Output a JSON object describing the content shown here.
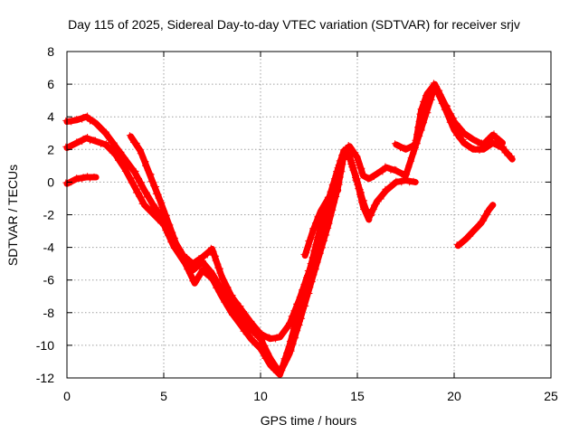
{
  "chart_data": {
    "type": "scatter",
    "title": "Day 115 of 2025, Sidereal Day-to-day VTEC variation (SDTVAR) for receiver srjv",
    "xlabel": "GPS time / hours",
    "ylabel": "SDTVAR / TECUs",
    "xlim": [
      0,
      25
    ],
    "ylim": [
      -12,
      8
    ],
    "xticks": [
      "0",
      "5",
      "10",
      "15",
      "20",
      "25"
    ],
    "yticks": [
      "8",
      "6",
      "4",
      "2",
      "0",
      "-2",
      "-4",
      "-6",
      "-8",
      "-10",
      "-12"
    ],
    "grid": true,
    "marker": "plus",
    "color": "#ff0000",
    "series": [
      {
        "x": [
          0.0,
          0.5,
          1.0,
          1.5,
          2.0,
          2.5,
          3.0,
          3.5,
          4.0,
          4.5,
          5.0,
          5.5,
          6.0,
          6.5,
          7.0,
          7.5,
          8.0,
          8.5,
          9.0,
          9.5,
          10.0,
          10.5,
          11.0,
          11.5,
          12.0,
          12.5,
          13.0,
          13.5,
          14.0,
          14.3,
          14.6,
          15.0,
          15.3,
          15.6,
          16.0,
          16.5,
          17.0,
          17.5,
          18.0,
          18.5,
          19.0,
          19.5,
          20.0,
          20.5,
          21.0,
          21.5,
          22.0,
          22.5,
          23.0
        ],
        "y": [
          3.7,
          3.8,
          4.0,
          3.6,
          3.0,
          2.2,
          1.4,
          0.6,
          -0.5,
          -1.5,
          -2.3,
          -3.5,
          -4.5,
          -5.0,
          -4.6,
          -4.1,
          -5.8,
          -7.0,
          -7.8,
          -8.6,
          -9.3,
          -9.6,
          -9.5,
          -8.7,
          -7.2,
          -5.5,
          -3.7,
          -1.5,
          0.8,
          1.9,
          2.2,
          1.5,
          0.4,
          0.2,
          0.5,
          0.9,
          0.7,
          0.4,
          2.2,
          4.0,
          5.9,
          4.6,
          3.2,
          2.4,
          2.0,
          2.0,
          2.4,
          2.1,
          1.4
        ]
      },
      {
        "x": [
          0.0,
          0.5,
          1.0,
          1.5,
          2.0,
          2.5,
          3.0,
          3.5,
          4.0,
          4.5,
          5.0,
          5.5,
          6.0,
          6.5,
          7.0,
          7.5,
          8.0,
          8.5,
          9.0,
          9.5,
          10.0,
          10.5,
          11.0,
          11.5,
          12.0,
          12.5,
          13.0,
          13.5,
          14.0,
          14.3,
          14.6,
          15.0,
          15.3,
          15.6,
          16.0,
          16.5,
          17.0,
          17.5,
          18.0
        ],
        "y": [
          2.1,
          2.4,
          2.7,
          2.5,
          2.3,
          1.7,
          0.8,
          -0.3,
          -1.4,
          -2.0,
          -2.6,
          -3.9,
          -4.8,
          -5.4,
          -4.9,
          -5.6,
          -6.6,
          -7.6,
          -8.4,
          -9.0,
          -9.6,
          -10.8,
          -11.7,
          -10.5,
          -8.6,
          -6.6,
          -4.6,
          -2.6,
          -0.3,
          1.6,
          1.5,
          0.0,
          -1.2,
          -2.2,
          -1.2,
          -0.5,
          0.0,
          0.1,
          0.0
        ]
      },
      {
        "x": [
          0.0,
          0.5,
          1.0,
          1.5
        ],
        "y": [
          -0.1,
          0.2,
          0.3,
          0.3
        ]
      },
      {
        "x": [
          3.3,
          3.8,
          4.3,
          4.8,
          5.3,
          5.8,
          6.2,
          6.6,
          7.0,
          7.5,
          8.0,
          8.5,
          9.0,
          9.5,
          10.0,
          10.5,
          11.0,
          11.5,
          12.0,
          12.5,
          13.0,
          13.5,
          14.0,
          14.3,
          14.6,
          15.0,
          15.3,
          15.6
        ],
        "y": [
          2.8,
          1.9,
          0.4,
          -1.1,
          -2.7,
          -4.3,
          -5.2,
          -6.2,
          -5.4,
          -5.9,
          -7.0,
          -8.0,
          -8.8,
          -9.6,
          -10.2,
          -11.2,
          -11.8,
          -10.0,
          -7.8,
          -5.6,
          -3.2,
          -1.1,
          0.8,
          1.9,
          1.6,
          0.0,
          -1.5,
          -2.3
        ]
      },
      {
        "x": [
          12.3,
          12.7,
          13.1,
          13.5,
          13.8,
          14.0
        ],
        "y": [
          -4.5,
          -3.0,
          -1.8,
          -1.0,
          -0.6,
          -0.5
        ]
      },
      {
        "x": [
          17.0,
          17.5,
          18.0,
          18.3,
          18.6,
          19.0,
          19.3,
          19.6,
          20.0,
          20.5,
          21.0,
          21.5,
          22.0,
          22.5
        ],
        "y": [
          2.3,
          2.0,
          2.3,
          4.4,
          5.4,
          6.0,
          5.3,
          4.6,
          3.7,
          3.0,
          2.6,
          2.3,
          2.9,
          2.4
        ]
      },
      {
        "x": [
          20.2,
          20.6,
          21.0,
          21.4,
          21.8,
          22.0
        ],
        "y": [
          -3.9,
          -3.5,
          -3.0,
          -2.5,
          -1.7,
          -1.4
        ]
      }
    ]
  }
}
